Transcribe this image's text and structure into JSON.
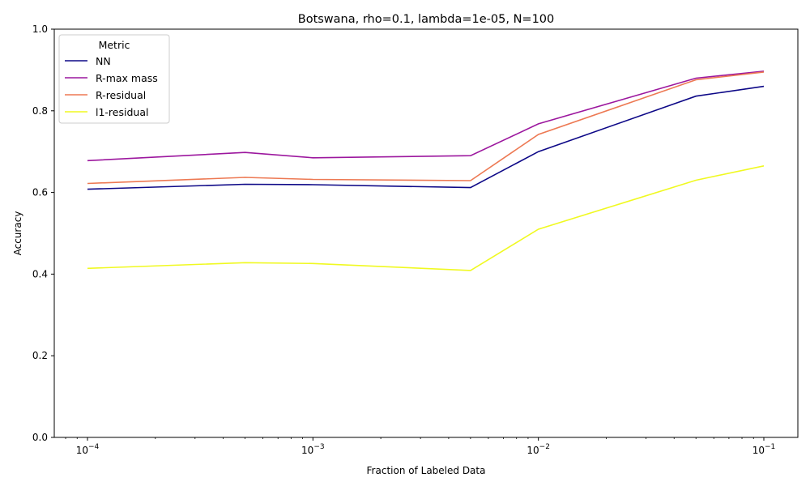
{
  "chart_data": {
    "type": "line",
    "title": "Botswana, rho=0.1, lambda=1e-05, N=100",
    "xlabel": "Fraction of Labeled Data",
    "ylabel": "Accuracy",
    "xscale": "log",
    "x": [
      0.0001,
      0.0005,
      0.001,
      0.005,
      0.01,
      0.05,
      0.1
    ],
    "xticks": [
      {
        "value": 0.0001,
        "base": "10",
        "exp": "−4"
      },
      {
        "value": 0.001,
        "base": "10",
        "exp": "−3"
      },
      {
        "value": 0.01,
        "base": "10",
        "exp": "−2"
      },
      {
        "value": 0.1,
        "base": "10",
        "exp": "−1"
      }
    ],
    "yticks": [
      "0.0",
      "0.2",
      "0.4",
      "0.6",
      "0.8",
      "1.0"
    ],
    "ylim": [
      0,
      1
    ],
    "grid": false,
    "legend": {
      "title": "Metric",
      "placement": "upper-left"
    },
    "series": [
      {
        "name": "NN",
        "color": "#0d0887",
        "values": [
          0.608,
          0.62,
          0.619,
          0.612,
          0.7,
          0.836,
          0.86
        ]
      },
      {
        "name": "R-max mass",
        "color": "#9c179e",
        "values": [
          0.678,
          0.698,
          0.685,
          0.69,
          0.768,
          0.88,
          0.897
        ]
      },
      {
        "name": "R-residual",
        "color": "#ed7953",
        "values": [
          0.622,
          0.637,
          0.632,
          0.629,
          0.742,
          0.876,
          0.895
        ]
      },
      {
        "name": "l1-residual",
        "color": "#f0f921",
        "values": [
          0.414,
          0.428,
          0.426,
          0.409,
          0.51,
          0.63,
          0.665
        ]
      }
    ]
  }
}
